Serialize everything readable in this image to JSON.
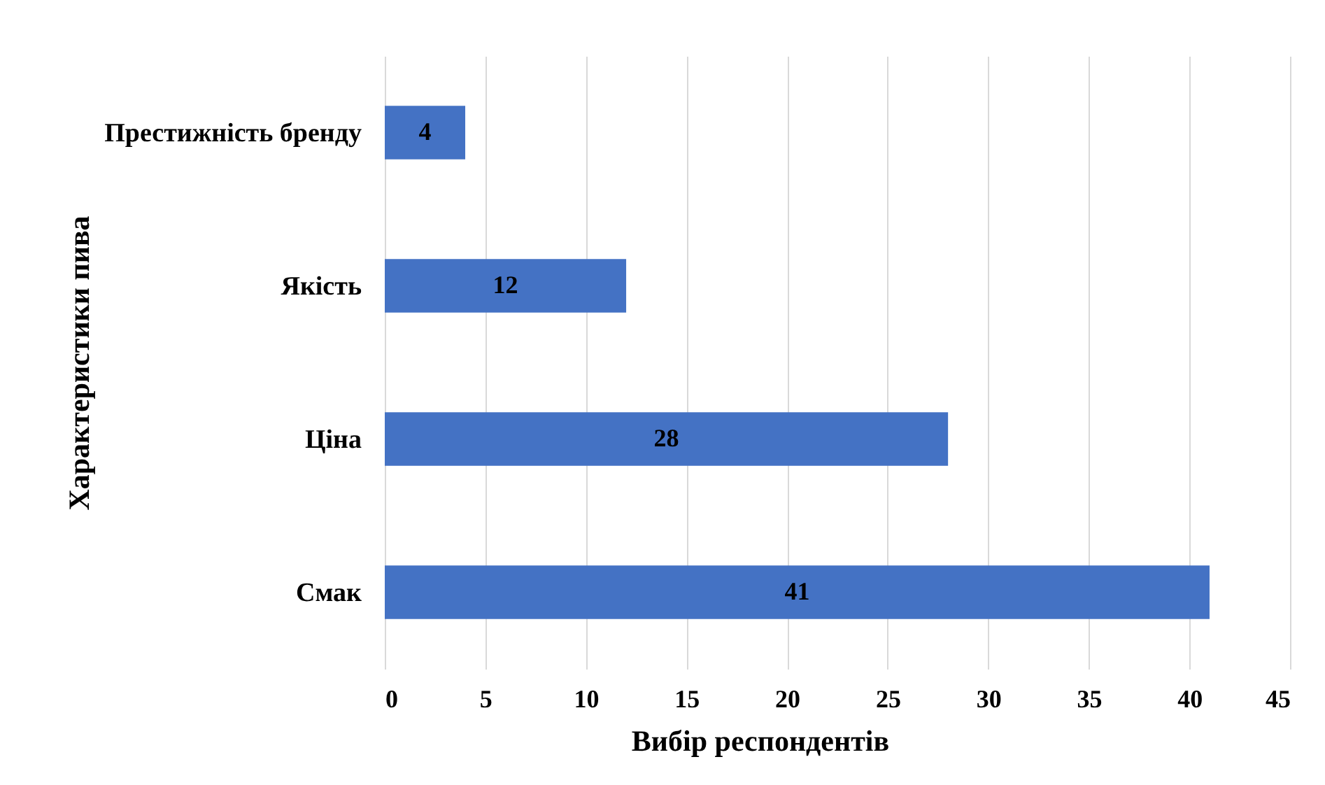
{
  "chart_data": {
    "type": "bar",
    "orientation": "horizontal",
    "categories": [
      "Престижність бренду",
      "Якість",
      "Ціна",
      "Смак"
    ],
    "values": [
      4,
      12,
      28,
      41
    ],
    "color": "#4472c4",
    "xlabel": "Вибір респондентів",
    "ylabel": "Характеристики пива",
    "xlim": [
      0,
      45
    ],
    "xticks": [
      0,
      5,
      10,
      15,
      20,
      25,
      30,
      35,
      40,
      45
    ],
    "grid": "x",
    "data_labels": true
  }
}
